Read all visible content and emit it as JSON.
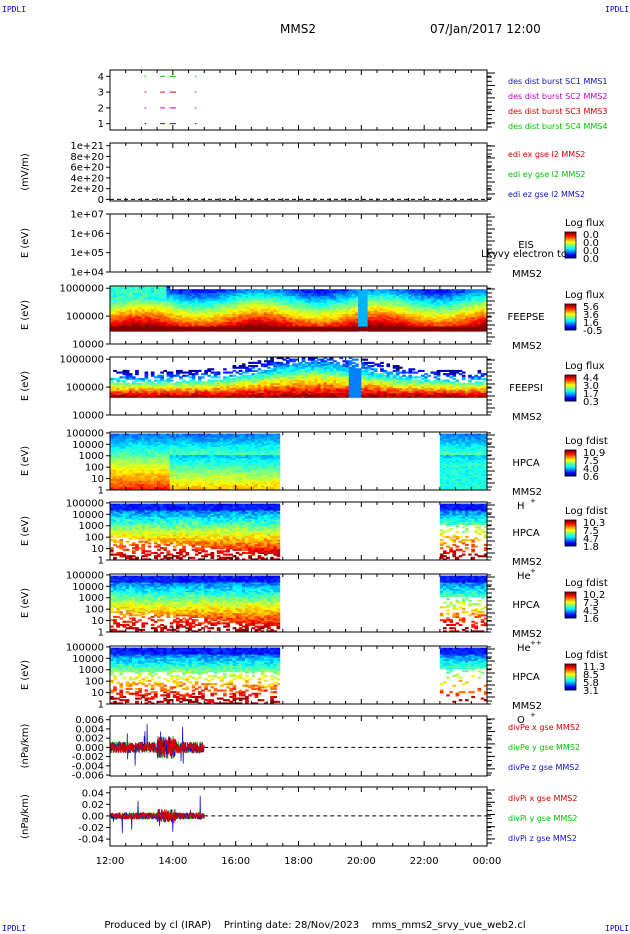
{
  "corners": {
    "tl": "IPDLI",
    "tr": "IPDLI",
    "bl": "IPDLI",
    "br": "IPDLI"
  },
  "header": {
    "spacecraft": "MMS2",
    "datetime": "07/Jan/2017 12:00"
  },
  "footer": {
    "text": "Produced by cl (IRAP)    Printing date: 28/Nov/2023    mms_mms2_srvy_vue_web2.cl"
  },
  "colors": {
    "cluster1": "#1010c0",
    "cluster2": "#c000c0",
    "cluster3": "#d00000",
    "cluster4": "#00c000"
  },
  "x_axis": {
    "ticks": [
      "12:00",
      "14:00",
      "16:00",
      "18:00",
      "20:00",
      "22:00",
      "00:00"
    ],
    "range_hours": [
      12,
      24
    ]
  },
  "chart_data": [
    {
      "type": "scatter",
      "ytick_labels": [
        "4",
        "3",
        "2",
        "1"
      ],
      "yticks": [
        4,
        3,
        2,
        1
      ],
      "ylim": [
        0.6,
        4.4
      ],
      "legend": [
        "des dist burst SC1 MMS1",
        "des dist burst SC2 MMS2",
        "des dist burst SC3 MMS3",
        "des dist burst SC4 MMS4"
      ],
      "legend_colors": [
        "#1010c0",
        "#c000c0",
        "#d00000",
        "#00c000"
      ]
    },
    {
      "type": "line",
      "ylabel": "(mV/m)",
      "ytick_labels": [
        "1e+21",
        "8e+20",
        "6e+20",
        "4e+20",
        "2e+20",
        "0"
      ],
      "yticks": [
        1e+21,
        8e+20,
        6e+20,
        4e+20,
        2e+20,
        0
      ],
      "ylim": [
        -3e+19,
        1.05e+21
      ],
      "legend": [
        "edi ex gse l2 MMS2",
        "edi ey gse l2 MMS2",
        "edi ez gse l2 MMS2"
      ],
      "legend_colors": [
        "#d00000",
        "#00c000",
        "#1010c0"
      ]
    },
    {
      "type": "heatmap",
      "ylabel": "E (eV)",
      "ytick_labels": [
        "1e+07",
        "1e+06",
        "1e+05",
        "1e+04"
      ],
      "yticks": [
        10000000.0,
        1000000.0,
        100000.0,
        10000.0
      ],
      "ylim": [
        10000.0,
        10000000.0
      ],
      "instrument": "EIS",
      "spacecraft": "MMS2",
      "colorbar_title": "Log flux",
      "colorbar_ticks": [
        "0.0",
        "0.0",
        "0.0",
        "0.0"
      ],
      "overlay_text": "Lkyvy electron to"
    },
    {
      "type": "heatmap",
      "ylabel": "E (eV)",
      "ytick_labels": [
        "1000000",
        "100000",
        "10000"
      ],
      "yticks": [
        1000000.0,
        100000.0,
        10000.0
      ],
      "ylim": [
        10000.0,
        1200000.0
      ],
      "instrument": "FEEPSE",
      "spacecraft": "MMS2",
      "colorbar_title": "Log flux",
      "colorbar_ticks": [
        "5.6",
        "3.6",
        "1.6",
        "-0.5"
      ]
    },
    {
      "type": "heatmap",
      "ylabel": "E (eV)",
      "ytick_labels": [
        "1000000",
        "100000",
        "10000"
      ],
      "yticks": [
        1000000.0,
        100000.0,
        10000.0
      ],
      "ylim": [
        10000.0,
        1200000.0
      ],
      "instrument": "FEEPSI",
      "spacecraft": "MMS2",
      "colorbar_title": "Log flux",
      "colorbar_ticks": [
        "4.4",
        "3.0",
        "1.7",
        "0.3"
      ]
    },
    {
      "type": "heatmap",
      "ylabel": "E (eV)",
      "ytick_labels": [
        "100000",
        "10000",
        "1000",
        "100",
        "10",
        "1"
      ],
      "yticks": [
        100000.0,
        10000.0,
        1000.0,
        100.0,
        10,
        1
      ],
      "ylim": [
        1,
        120000.0
      ],
      "instrument": "HPCA",
      "spacecraft": "MMS2",
      "species": "H",
      "species_sup": "+",
      "colorbar_title": "Log fdist",
      "colorbar_ticks": [
        "10.9",
        "7.5",
        "4.0",
        "0.6"
      ]
    },
    {
      "type": "heatmap",
      "ylabel": "E (eV)",
      "ytick_labels": [
        "100000",
        "10000",
        "1000",
        "100",
        "10",
        "1"
      ],
      "yticks": [
        100000.0,
        10000.0,
        1000.0,
        100.0,
        10,
        1
      ],
      "ylim": [
        1,
        120000.0
      ],
      "instrument": "HPCA",
      "spacecraft": "MMS2",
      "species": "He",
      "species_sup": "+",
      "colorbar_title": "Log fdist",
      "colorbar_ticks": [
        "10.3",
        "7.5",
        "4.7",
        "1.8"
      ]
    },
    {
      "type": "heatmap",
      "ylabel": "E (eV)",
      "ytick_labels": [
        "100000",
        "10000",
        "1000",
        "100",
        "10",
        "1"
      ],
      "yticks": [
        100000.0,
        10000.0,
        1000.0,
        100.0,
        10,
        1
      ],
      "ylim": [
        1,
        120000.0
      ],
      "instrument": "HPCA",
      "spacecraft": "MMS2",
      "species": "He",
      "species_sup": "++",
      "colorbar_title": "Log fdist",
      "colorbar_ticks": [
        "10.2",
        "7.3",
        "4.5",
        "1.6"
      ]
    },
    {
      "type": "heatmap",
      "ylabel": "E (eV)",
      "ytick_labels": [
        "100000",
        "10000",
        "1000",
        "100",
        "10",
        "1"
      ],
      "yticks": [
        100000.0,
        10000.0,
        1000.0,
        100.0,
        10,
        1
      ],
      "ylim": [
        1,
        120000.0
      ],
      "instrument": "HPCA",
      "spacecraft": "MMS2",
      "species": "O",
      "species_sup": "+",
      "colorbar_title": "Log fdist",
      "colorbar_ticks": [
        "11.3",
        "8.5",
        "5.8",
        "3.1"
      ]
    },
    {
      "type": "line",
      "ylabel": "(nPa/km)",
      "ytick_labels": [
        "0.006",
        "0.004",
        "0.002",
        "0.000",
        "-0.002",
        "-0.004",
        "-0.006"
      ],
      "yticks": [
        0.006,
        0.004,
        0.002,
        0,
        -0.002,
        -0.004,
        -0.006
      ],
      "ylim": [
        -0.0062,
        0.0068
      ],
      "legend": [
        "divPe x gse MMS2",
        "divPe y gse MMS2",
        "divPe z gse MMS2"
      ],
      "legend_colors": [
        "#d00000",
        "#00c000",
        "#1010c0"
      ]
    },
    {
      "type": "line",
      "ylabel": "(nPa/km)",
      "ytick_labels": [
        "0.04",
        "0.02",
        "0.00",
        "-0.02",
        "-0.04"
      ],
      "yticks": [
        0.04,
        0.02,
        0,
        -0.02,
        -0.04
      ],
      "ylim": [
        -0.052,
        0.05
      ],
      "legend": [
        "divPi x gse MMS2",
        "divPi y gse MMS2",
        "divPi z gse MMS2"
      ],
      "legend_colors": [
        "#d00000",
        "#00c000",
        "#1010c0"
      ]
    }
  ]
}
